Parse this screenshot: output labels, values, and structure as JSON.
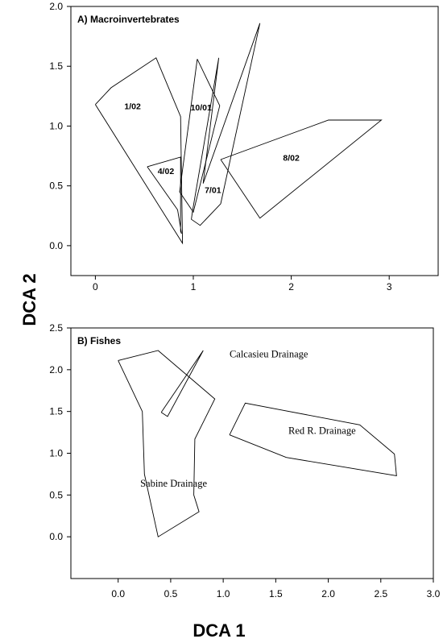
{
  "axis_titles": {
    "x": "DCA 1",
    "y": "DCA 2"
  },
  "chart_data": [
    {
      "type": "scatter",
      "title": "A) Macroinvertebrates",
      "xlim": [
        -0.25,
        3.5
      ],
      "ylim": [
        -0.25,
        2.0
      ],
      "xticks": [
        0,
        1,
        2,
        3
      ],
      "yticks": [
        0.0,
        0.5,
        1.0,
        1.5,
        2.0
      ],
      "xtick_labels": [
        "0",
        "1",
        "2",
        "3"
      ],
      "ytick_labels": [
        "0.0",
        "0.5",
        "1.0",
        "1.5",
        "2.0"
      ],
      "grid": false,
      "series": [
        {
          "name": "1/02",
          "label_at": [
            0.38,
            1.14
          ],
          "polygon": [
            [
              0.0,
              1.18
            ],
            [
              0.16,
              1.32
            ],
            [
              0.62,
              1.57
            ],
            [
              0.87,
              1.08
            ],
            [
              0.89,
              0.02
            ],
            [
              0.0,
              1.18
            ]
          ]
        },
        {
          "name": "10/01",
          "label_at": [
            1.08,
            1.13
          ],
          "polygon": [
            [
              1.04,
              1.56
            ],
            [
              1.27,
              1.17
            ],
            [
              1.0,
              0.28
            ],
            [
              0.86,
              0.45
            ],
            [
              1.04,
              1.56
            ]
          ]
        },
        {
          "name": "4/02",
          "label_at": [
            0.72,
            0.6
          ],
          "polygon": [
            [
              0.53,
              0.66
            ],
            [
              0.87,
              0.74
            ],
            [
              0.87,
              0.12
            ],
            [
              0.88,
              0.1
            ],
            [
              0.84,
              0.3
            ],
            [
              0.53,
              0.66
            ]
          ]
        },
        {
          "name": "7/01",
          "label_at": [
            1.2,
            0.44
          ],
          "polygon": [
            [
              0.99,
              0.28
            ],
            [
              1.26,
              1.57
            ],
            [
              1.1,
              0.52
            ],
            [
              1.68,
              1.86
            ],
            [
              1.28,
              0.35
            ],
            [
              1.07,
              0.17
            ],
            [
              0.98,
              0.22
            ],
            [
              0.99,
              0.28
            ]
          ]
        },
        {
          "name": "8/02",
          "label_at": [
            2.0,
            0.71
          ],
          "polygon": [
            [
              1.28,
              0.72
            ],
            [
              2.38,
              1.05
            ],
            [
              2.92,
              1.05
            ],
            [
              1.68,
              0.23
            ],
            [
              1.28,
              0.72
            ]
          ]
        }
      ]
    },
    {
      "type": "scatter",
      "title": "B) Fishes",
      "xlim": [
        -0.45,
        3.0
      ],
      "ylim": [
        -0.5,
        2.5
      ],
      "xticks": [
        0.0,
        0.5,
        1.0,
        1.5,
        2.0,
        2.5,
        3.0
      ],
      "yticks": [
        0.0,
        0.5,
        1.0,
        1.5,
        2.0,
        2.5
      ],
      "xtick_labels": [
        "0.0",
        "0.5",
        "1.0",
        "1.5",
        "2.0",
        "2.5",
        "3.0"
      ],
      "ytick_labels": [
        "0.0",
        "0.5",
        "1.0",
        "1.5",
        "2.0",
        "2.5"
      ],
      "grid": false,
      "series": [
        {
          "name": "Sabine Drainage",
          "label_at": [
            0.21,
            0.6
          ],
          "polygon": [
            [
              0.0,
              2.11
            ],
            [
              0.38,
              2.23
            ],
            [
              0.92,
              1.65
            ],
            [
              0.73,
              1.17
            ],
            [
              0.72,
              0.5
            ],
            [
              0.77,
              0.3
            ],
            [
              0.38,
              0.0
            ],
            [
              0.25,
              0.75
            ],
            [
              0.23,
              1.5
            ],
            [
              0.0,
              2.11
            ]
          ]
        },
        {
          "name": "Calcasieu Drainage",
          "label_at": [
            1.06,
            2.15
          ],
          "polygon": [
            [
              0.41,
              1.49
            ],
            [
              0.81,
              2.23
            ],
            [
              0.47,
              1.44
            ],
            [
              0.41,
              1.49
            ]
          ]
        },
        {
          "name": "Red R. Drainage",
          "label_at": [
            1.62,
            1.23
          ],
          "polygon": [
            [
              1.06,
              1.22
            ],
            [
              1.21,
              1.6
            ],
            [
              2.3,
              1.34
            ],
            [
              2.63,
              0.99
            ],
            [
              2.65,
              0.73
            ],
            [
              1.6,
              0.95
            ],
            [
              1.06,
              1.22
            ]
          ]
        }
      ]
    }
  ]
}
